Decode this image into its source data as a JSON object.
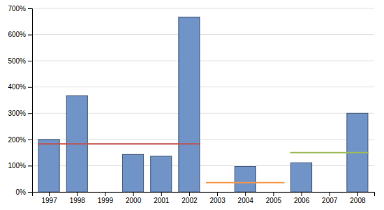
{
  "chart_data": {
    "type": "bar",
    "series": [
      {
        "type": "bar",
        "color": "#7094C8",
        "x": [
          1997,
          1998,
          1999,
          2000,
          2001,
          2002,
          2003,
          2004,
          2005,
          2006,
          2007,
          2008
        ],
        "values": [
          200,
          367,
          0,
          143,
          136,
          667,
          0,
          97,
          0,
          111,
          0,
          300
        ]
      },
      {
        "type": "line",
        "color": "#C0504D",
        "x": [
          1996.6,
          2002.4
        ],
        "values": [
          183,
          183
        ]
      },
      {
        "type": "line",
        "color": "#F79646",
        "x": [
          2002.6,
          2005.4
        ],
        "values": [
          35,
          35
        ]
      },
      {
        "type": "line",
        "color": "#9BBB59",
        "x": [
          2005.6,
          2008.4
        ],
        "values": [
          150,
          150
        ]
      }
    ],
    "xlim": [
      1996.4,
      2008.6
    ],
    "xticks": [
      1997,
      1998,
      1999,
      2000,
      2001,
      2002,
      2003,
      2004,
      2005,
      2006,
      2007,
      2008
    ],
    "ylim": [
      0,
      700
    ],
    "yticks": [
      {
        "value": 0,
        "label": "0%"
      },
      {
        "value": 100,
        "label": "100%"
      },
      {
        "value": 200,
        "label": "200%"
      },
      {
        "value": 300,
        "label": "300%"
      },
      {
        "value": 400,
        "label": "400%"
      },
      {
        "value": 500,
        "label": "500%"
      },
      {
        "value": 600,
        "label": "600%"
      },
      {
        "value": 700,
        "label": "700%"
      }
    ],
    "grid": true
  }
}
